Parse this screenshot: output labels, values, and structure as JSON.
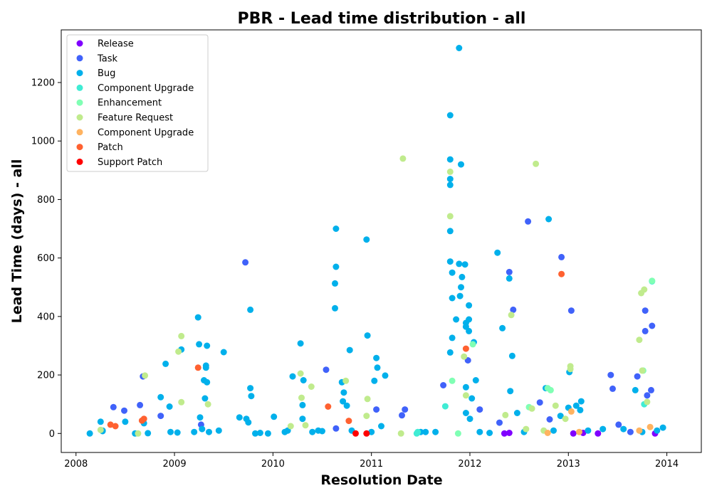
{
  "chart_data": {
    "type": "scatter",
    "title": "PBR - Lead time distribution - all",
    "xlabel": "Resolution Date",
    "ylabel": "Lead Time (days) - all",
    "xlim": [
      2007.85,
      2014.35
    ],
    "ylim": [
      -65,
      1380
    ],
    "x_ticks": [
      2008,
      2009,
      2010,
      2011,
      2012,
      2013,
      2014
    ],
    "y_ticks": [
      0,
      200,
      400,
      600,
      800,
      1000,
      1200
    ],
    "grid": false,
    "legend_position": "upper-left",
    "series": [
      {
        "name": "Release",
        "color": "#8000ff",
        "points": [
          [
            2012.35,
            0
          ],
          [
            2012.4,
            2
          ],
          [
            2013.05,
            0
          ],
          [
            2013.15,
            2
          ],
          [
            2013.3,
            0
          ],
          [
            2013.88,
            0
          ]
        ]
      },
      {
        "name": "Task",
        "color": "#4062fa",
        "points": [
          [
            2008.38,
            90
          ],
          [
            2008.49,
            78
          ],
          [
            2008.65,
            97
          ],
          [
            2008.68,
            195
          ],
          [
            2008.86,
            60
          ],
          [
            2009.27,
            30
          ],
          [
            2009.72,
            585
          ],
          [
            2010.54,
            218
          ],
          [
            2010.64,
            17
          ],
          [
            2011.05,
            82
          ],
          [
            2011.31,
            62
          ],
          [
            2011.34,
            82
          ],
          [
            2011.73,
            165
          ],
          [
            2011.98,
            250
          ],
          [
            2012.1,
            82
          ],
          [
            2012.3,
            37
          ],
          [
            2012.4,
            552
          ],
          [
            2012.44,
            423
          ],
          [
            2012.59,
            725
          ],
          [
            2012.71,
            106
          ],
          [
            2012.81,
            48
          ],
          [
            2012.93,
            603
          ],
          [
            2013.03,
            420
          ],
          [
            2013.43,
            200
          ],
          [
            2013.45,
            153
          ],
          [
            2013.51,
            30
          ],
          [
            2013.63,
            5
          ],
          [
            2013.7,
            195
          ],
          [
            2013.78,
            420
          ],
          [
            2013.78,
            350
          ],
          [
            2013.8,
            130
          ],
          [
            2013.84,
            148
          ],
          [
            2013.85,
            368
          ]
        ]
      },
      {
        "name": "Bug",
        "color": "#00b0eb",
        "points": [
          [
            2008.14,
            0
          ],
          [
            2008.25,
            40
          ],
          [
            2008.27,
            8
          ],
          [
            2008.5,
            40
          ],
          [
            2008.6,
            0
          ],
          [
            2008.69,
            35
          ],
          [
            2008.86,
            124
          ],
          [
            2008.91,
            238
          ],
          [
            2008.95,
            92
          ],
          [
            2008.96,
            5
          ],
          [
            2009.03,
            3
          ],
          [
            2009.07,
            287
          ],
          [
            2009.24,
            397
          ],
          [
            2009.25,
            305
          ],
          [
            2009.26,
            55
          ],
          [
            2009.3,
            182
          ],
          [
            2009.33,
            300
          ],
          [
            2009.32,
            232
          ],
          [
            2009.32,
            225
          ],
          [
            2009.31,
            120
          ],
          [
            2009.33,
            175
          ],
          [
            2009.28,
            15
          ],
          [
            2009.35,
            5
          ],
          [
            2009.5,
            278
          ],
          [
            2009.66,
            55
          ],
          [
            2009.73,
            50
          ],
          [
            2009.75,
            38
          ],
          [
            2009.77,
            155
          ],
          [
            2009.78,
            128
          ],
          [
            2009.77,
            423
          ],
          [
            2009.82,
            0
          ],
          [
            2009.95,
            0
          ],
          [
            2010.01,
            57
          ],
          [
            2010.12,
            5
          ],
          [
            2010.2,
            195
          ],
          [
            2010.28,
            308
          ],
          [
            2010.31,
            182
          ],
          [
            2010.3,
            97
          ],
          [
            2010.3,
            50
          ],
          [
            2010.46,
            10
          ],
          [
            2010.64,
            700
          ],
          [
            2010.64,
            570
          ],
          [
            2010.63,
            513
          ],
          [
            2010.63,
            428
          ],
          [
            2010.7,
            175
          ],
          [
            2010.72,
            140
          ],
          [
            2010.71,
            110
          ],
          [
            2010.75,
            95
          ],
          [
            2010.78,
            285
          ],
          [
            2010.95,
            663
          ],
          [
            2010.96,
            335
          ],
          [
            2011.05,
            258
          ],
          [
            2011.06,
            225
          ],
          [
            2011.03,
            180
          ],
          [
            2011.14,
            198
          ],
          [
            2011.1,
            25
          ],
          [
            2011.55,
            5
          ],
          [
            2011.8,
            1088
          ],
          [
            2011.8,
            937
          ],
          [
            2011.8,
            870
          ],
          [
            2011.8,
            850
          ],
          [
            2011.8,
            692
          ],
          [
            2011.8,
            588
          ],
          [
            2011.82,
            550
          ],
          [
            2011.82,
            463
          ],
          [
            2011.82,
            327
          ],
          [
            2011.8,
            277
          ],
          [
            2011.86,
            390
          ],
          [
            2011.89,
            580
          ],
          [
            2011.91,
            500
          ],
          [
            2011.92,
            535
          ],
          [
            2011.9,
            470
          ],
          [
            2011.95,
            578
          ],
          [
            2011.96,
            378
          ],
          [
            2011.96,
            365
          ],
          [
            2011.99,
            438
          ],
          [
            2011.99,
            390
          ],
          [
            2011.99,
            350
          ],
          [
            2011.96,
            158
          ],
          [
            2011.96,
            70
          ],
          [
            2012.04,
            312
          ],
          [
            2012.06,
            182
          ],
          [
            2012.02,
            120
          ],
          [
            2012.0,
            50
          ],
          [
            2011.91,
            920
          ],
          [
            2011.89,
            1318
          ],
          [
            2012.28,
            618
          ],
          [
            2012.33,
            360
          ],
          [
            2012.4,
            530
          ],
          [
            2012.43,
            265
          ],
          [
            2012.41,
            145
          ],
          [
            2012.48,
            70
          ],
          [
            2012.8,
            733
          ],
          [
            2012.77,
            155
          ],
          [
            2012.92,
            60
          ],
          [
            2013.0,
            88
          ],
          [
            2013.01,
            210
          ],
          [
            2013.13,
            110
          ],
          [
            2013.12,
            80
          ],
          [
            2013.08,
            95
          ],
          [
            2013.56,
            15
          ],
          [
            2013.68,
            148
          ],
          [
            2013.96,
            20
          ],
          [
            2008.27,
            10
          ],
          [
            2008.73,
            1
          ],
          [
            2009.2,
            5
          ],
          [
            2009.45,
            10
          ],
          [
            2009.87,
            2
          ],
          [
            2010.15,
            10
          ],
          [
            2010.4,
            5
          ],
          [
            2010.5,
            8
          ],
          [
            2010.8,
            10
          ],
          [
            2011.0,
            5
          ],
          [
            2011.5,
            5
          ],
          [
            2011.65,
            5
          ],
          [
            2012.1,
            5
          ],
          [
            2012.2,
            2
          ],
          [
            2012.55,
            5
          ],
          [
            2012.85,
            10
          ],
          [
            2013.2,
            10
          ],
          [
            2013.35,
            15
          ],
          [
            2013.75,
            5
          ],
          [
            2013.9,
            10
          ]
        ]
      },
      {
        "name": "Component Upgrade",
        "color": "#40ecd4",
        "points": [
          [
            2011.46,
            0
          ],
          [
            2011.47,
            5
          ],
          [
            2011.75,
            93
          ],
          [
            2013.85,
            520
          ],
          [
            2013.77,
            100
          ]
        ]
      },
      {
        "name": "Enhancement",
        "color": "#80ffb4",
        "points": [
          [
            2011.82,
            180
          ],
          [
            2011.88,
            0
          ],
          [
            2012.03,
            305
          ],
          [
            2012.6,
            90
          ],
          [
            2012.82,
            148
          ],
          [
            2012.79,
            155
          ],
          [
            2013.76,
            215
          ],
          [
            2013.85,
            522
          ]
        ]
      },
      {
        "name": "Feature Request",
        "color": "#c0eb8d",
        "points": [
          [
            2008.25,
            12
          ],
          [
            2008.63,
            0
          ],
          [
            2008.7,
            198
          ],
          [
            2009.04,
            280
          ],
          [
            2009.07,
            333
          ],
          [
            2009.07,
            107
          ],
          [
            2009.34,
            100
          ],
          [
            2010.28,
            205
          ],
          [
            2010.29,
            122
          ],
          [
            2010.39,
            160
          ],
          [
            2010.18,
            25
          ],
          [
            2010.33,
            28
          ],
          [
            2010.74,
            180
          ],
          [
            2010.96,
            118
          ],
          [
            2010.95,
            60
          ],
          [
            2011.32,
            940
          ],
          [
            2011.3,
            0
          ],
          [
            2011.8,
            895
          ],
          [
            2011.8,
            743
          ],
          [
            2011.94,
            263
          ],
          [
            2011.96,
            130
          ],
          [
            2012.36,
            63
          ],
          [
            2012.42,
            405
          ],
          [
            2012.67,
            922
          ],
          [
            2012.63,
            85
          ],
          [
            2012.57,
            15
          ],
          [
            2012.75,
            10
          ],
          [
            2012.87,
            95
          ],
          [
            2012.97,
            50
          ],
          [
            2013.02,
            230
          ],
          [
            2013.02,
            220
          ],
          [
            2013.72,
            320
          ],
          [
            2013.74,
            480
          ],
          [
            2013.77,
            492
          ],
          [
            2013.8,
            108
          ],
          [
            2013.75,
            215
          ]
        ]
      },
      {
        "name": "Component  Upgrade",
        "color": "#ffb360",
        "points": [
          [
            2013.03,
            75
          ],
          [
            2012.79,
            2
          ],
          [
            2013.72,
            10
          ],
          [
            2013.83,
            22
          ],
          [
            2013.11,
            5
          ]
        ]
      },
      {
        "name": "Patch",
        "color": "#ff6130",
        "points": [
          [
            2008.35,
            30
          ],
          [
            2008.4,
            25
          ],
          [
            2008.67,
            44
          ],
          [
            2008.69,
            50
          ],
          [
            2009.24,
            225
          ],
          [
            2010.56,
            92
          ],
          [
            2010.77,
            43
          ],
          [
            2011.96,
            290
          ],
          [
            2012.93,
            545
          ]
        ]
      },
      {
        "name": "Support Patch",
        "color": "#ff0000",
        "points": [
          [
            2010.84,
            0
          ],
          [
            2010.95,
            0
          ]
        ]
      }
    ]
  }
}
